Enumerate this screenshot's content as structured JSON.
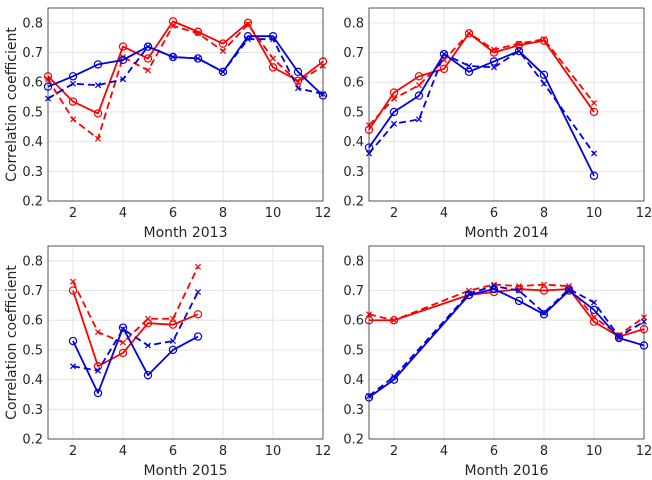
{
  "colors": {
    "red": "#ff0000",
    "blue": "#0000e0"
  },
  "chart_data": [
    {
      "type": "line",
      "xlabel": "Month 2013",
      "ylabel": "Correlation coefficient",
      "xlim": [
        1,
        12
      ],
      "ylim": [
        0.2,
        0.85
      ],
      "xticks": [
        2,
        4,
        6,
        8,
        10,
        12
      ],
      "yticks": [
        0.2,
        0.3,
        0.4,
        0.5,
        0.6,
        0.7,
        0.8
      ],
      "grid": true,
      "series": [
        {
          "color": "red",
          "style": "solid",
          "marker": "circle",
          "x": [
            1,
            2,
            3,
            4,
            5,
            6,
            7,
            8,
            9,
            10,
            11,
            12
          ],
          "y": [
            0.62,
            0.535,
            0.495,
            0.72,
            0.68,
            0.805,
            0.77,
            0.73,
            0.8,
            0.65,
            0.605,
            0.67
          ]
        },
        {
          "color": "red",
          "style": "dashed",
          "marker": "x",
          "x": [
            1,
            2,
            3,
            4,
            5,
            6,
            7,
            8,
            9,
            10,
            11,
            12
          ],
          "y": [
            0.61,
            0.475,
            0.41,
            0.685,
            0.64,
            0.79,
            0.765,
            0.705,
            0.795,
            0.68,
            0.6,
            0.655
          ]
        },
        {
          "color": "blue",
          "style": "solid",
          "marker": "circle",
          "x": [
            1,
            2,
            3,
            4,
            5,
            6,
            7,
            8,
            9,
            10,
            11,
            12
          ],
          "y": [
            0.585,
            0.62,
            0.66,
            0.675,
            0.72,
            0.685,
            0.68,
            0.635,
            0.755,
            0.755,
            0.635,
            0.555
          ]
        },
        {
          "color": "blue",
          "style": "dashed",
          "marker": "x",
          "x": [
            1,
            2,
            3,
            4,
            5,
            6,
            7,
            8,
            9,
            10,
            11,
            12
          ],
          "y": [
            0.545,
            0.595,
            0.59,
            0.61,
            0.72,
            0.685,
            0.68,
            0.635,
            0.745,
            0.745,
            0.58,
            0.56
          ]
        }
      ]
    },
    {
      "type": "line",
      "xlabel": "Month 2014",
      "ylabel": "",
      "xlim": [
        1,
        12
      ],
      "ylim": [
        0.2,
        0.85
      ],
      "xticks": [
        2,
        4,
        6,
        8,
        10,
        12
      ],
      "yticks": [
        0.2,
        0.3,
        0.4,
        0.5,
        0.6,
        0.7,
        0.8
      ],
      "grid": true,
      "series": [
        {
          "color": "red",
          "style": "solid",
          "marker": "circle",
          "x": [
            1,
            2,
            3,
            4,
            5,
            6,
            7,
            8,
            10
          ],
          "y": [
            0.44,
            0.565,
            0.62,
            0.645,
            0.765,
            0.7,
            0.725,
            0.74,
            0.5
          ]
        },
        {
          "color": "red",
          "style": "dashed",
          "marker": "x",
          "x": [
            1,
            2,
            3,
            4,
            5,
            6,
            7,
            8,
            10
          ],
          "y": [
            0.455,
            0.545,
            0.59,
            0.675,
            0.765,
            0.71,
            0.73,
            0.745,
            0.53
          ]
        },
        {
          "color": "blue",
          "style": "solid",
          "marker": "circle",
          "x": [
            1,
            2,
            3,
            4,
            5,
            6,
            7,
            8,
            10
          ],
          "y": [
            0.38,
            0.5,
            0.555,
            0.695,
            0.635,
            0.67,
            0.705,
            0.625,
            0.285
          ]
        },
        {
          "color": "blue",
          "style": "dashed",
          "marker": "x",
          "x": [
            1,
            2,
            3,
            4,
            5,
            6,
            7,
            8,
            10
          ],
          "y": [
            0.36,
            0.46,
            0.475,
            0.695,
            0.655,
            0.65,
            0.705,
            0.595,
            0.36
          ]
        }
      ]
    },
    {
      "type": "line",
      "xlabel": "Month 2015",
      "ylabel": "Correlation coefficient",
      "xlim": [
        1,
        12
      ],
      "ylim": [
        0.2,
        0.85
      ],
      "xticks": [
        2,
        4,
        6,
        8,
        10,
        12
      ],
      "yticks": [
        0.2,
        0.3,
        0.4,
        0.5,
        0.6,
        0.7,
        0.8
      ],
      "grid": true,
      "series": [
        {
          "color": "red",
          "style": "solid",
          "marker": "circle",
          "x": [
            2,
            3,
            4,
            5,
            6,
            7
          ],
          "y": [
            0.7,
            0.445,
            0.49,
            0.59,
            0.585,
            0.62
          ]
        },
        {
          "color": "red",
          "style": "dashed",
          "marker": "x",
          "x": [
            2,
            3,
            4,
            5,
            6,
            7
          ],
          "y": [
            0.73,
            0.56,
            0.525,
            0.605,
            0.605,
            0.78
          ]
        },
        {
          "color": "blue",
          "style": "solid",
          "marker": "circle",
          "x": [
            2,
            3,
            4,
            5,
            6,
            7
          ],
          "y": [
            0.53,
            0.355,
            0.575,
            0.415,
            0.5,
            0.545
          ]
        },
        {
          "color": "blue",
          "style": "dashed",
          "marker": "x",
          "x": [
            2,
            3,
            4,
            5,
            6,
            7
          ],
          "y": [
            0.445,
            0.43,
            0.57,
            0.515,
            0.53,
            0.695
          ]
        }
      ]
    },
    {
      "type": "line",
      "xlabel": "Month 2016",
      "ylabel": "",
      "xlim": [
        1,
        12
      ],
      "ylim": [
        0.2,
        0.85
      ],
      "xticks": [
        2,
        4,
        6,
        8,
        10,
        12
      ],
      "yticks": [
        0.2,
        0.3,
        0.4,
        0.5,
        0.6,
        0.7,
        0.8
      ],
      "grid": true,
      "series": [
        {
          "color": "red",
          "style": "solid",
          "marker": "circle",
          "x": [
            1,
            2,
            5,
            6,
            7,
            8,
            9,
            10,
            11,
            12
          ],
          "y": [
            0.6,
            0.6,
            0.685,
            0.695,
            0.705,
            0.7,
            0.705,
            0.595,
            0.545,
            0.57
          ]
        },
        {
          "color": "red",
          "style": "dashed",
          "marker": "x",
          "x": [
            1,
            2,
            5,
            6,
            7,
            8,
            9,
            10,
            11,
            12
          ],
          "y": [
            0.62,
            0.6,
            0.7,
            0.72,
            0.715,
            0.72,
            0.715,
            0.61,
            0.55,
            0.61
          ]
        },
        {
          "color": "blue",
          "style": "solid",
          "marker": "circle",
          "x": [
            1,
            2,
            5,
            6,
            7,
            8,
            9,
            10,
            11,
            12
          ],
          "y": [
            0.34,
            0.4,
            0.685,
            0.705,
            0.665,
            0.62,
            0.7,
            0.635,
            0.54,
            0.515
          ]
        },
        {
          "color": "blue",
          "style": "dashed",
          "marker": "x",
          "x": [
            1,
            2,
            5,
            6,
            7,
            8,
            9,
            10,
            11,
            12
          ],
          "y": [
            0.345,
            0.41,
            0.69,
            0.715,
            0.7,
            0.625,
            0.705,
            0.66,
            0.545,
            0.595
          ]
        }
      ]
    }
  ]
}
